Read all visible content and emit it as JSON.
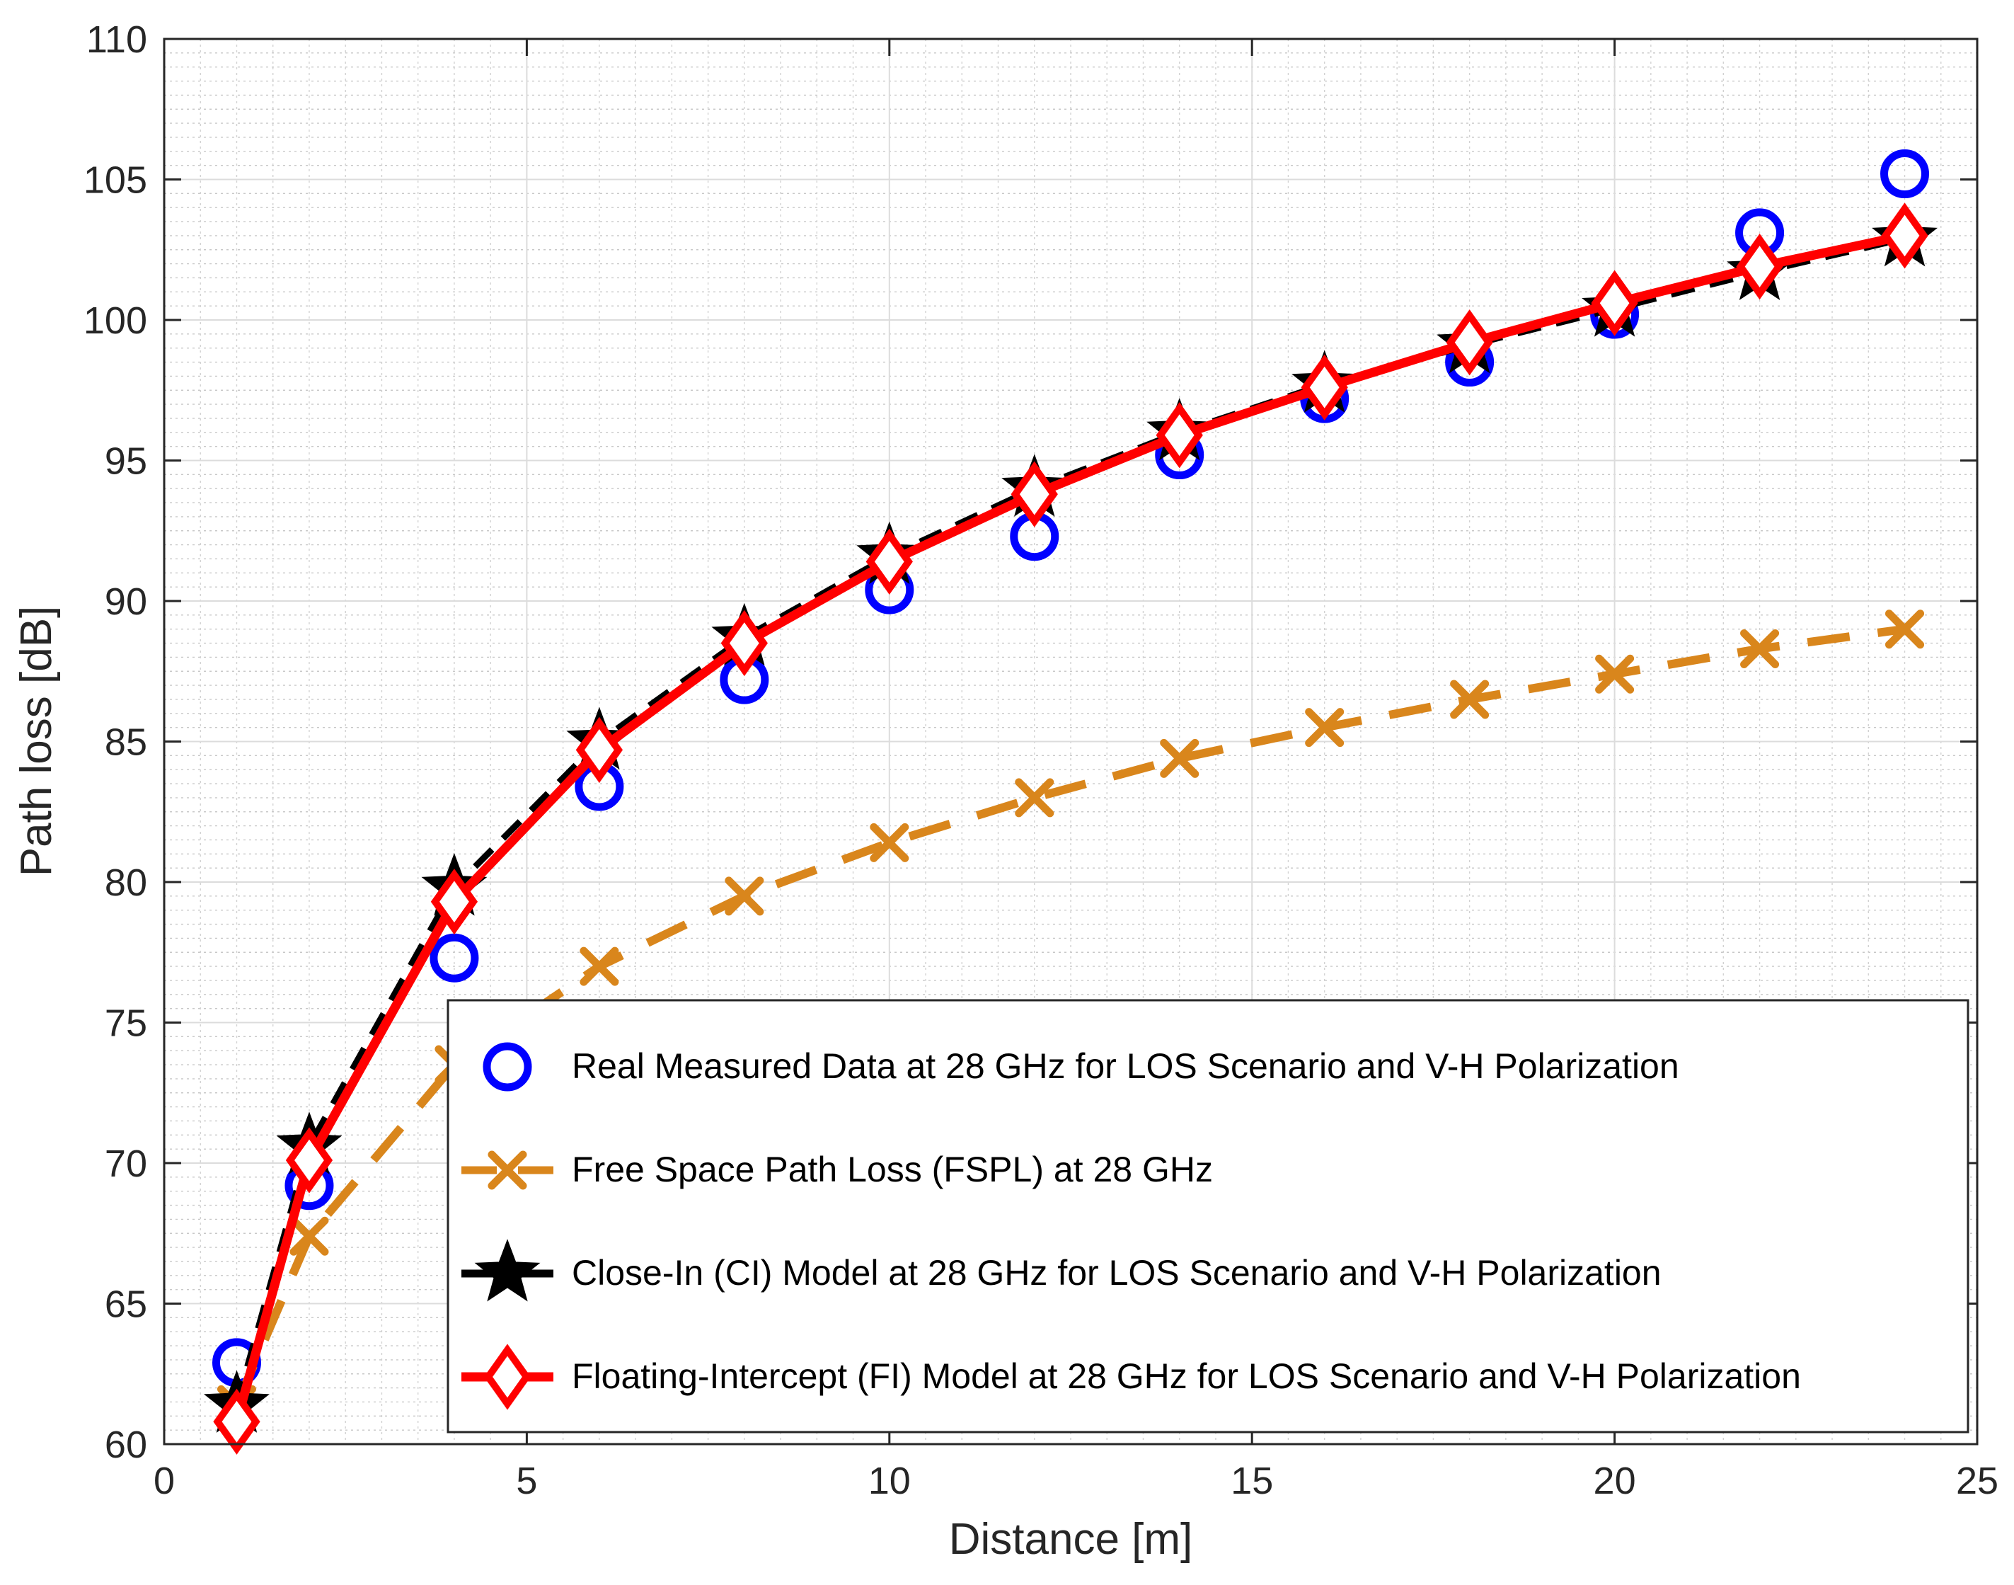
{
  "chart_data": {
    "type": "line",
    "title": "",
    "xlabel": "Distance [m]",
    "ylabel": "Path loss [dB]",
    "xlim": [
      0,
      25
    ],
    "ylim": [
      60,
      110
    ],
    "xticks": [
      0,
      5,
      10,
      15,
      20,
      25
    ],
    "yticks": [
      60,
      65,
      70,
      75,
      80,
      85,
      90,
      95,
      100,
      105,
      110
    ],
    "grid": true,
    "legend_position": "bottom-right",
    "series": [
      {
        "name": "Real Measured Data at 28 GHz for LOS Scenario and V-H Polarization",
        "style": "markers",
        "marker": "circle",
        "color": "#0000ff",
        "x": [
          1,
          2,
          4,
          6,
          8,
          10,
          12,
          14,
          16,
          18,
          20,
          22,
          24
        ],
        "y": [
          62.9,
          69.2,
          77.3,
          83.4,
          87.2,
          90.4,
          92.3,
          95.2,
          97.2,
          98.5,
          100.2,
          103.1,
          105.2
        ]
      },
      {
        "name": "Free Space Path Loss (FSPL) at 28 GHz",
        "style": "dashed-line",
        "marker": "x",
        "color": "#d9861c",
        "x": [
          1,
          2,
          4,
          6,
          8,
          10,
          12,
          14,
          16,
          18,
          20,
          22,
          24
        ],
        "y": [
          61.4,
          67.4,
          73.5,
          77.0,
          79.5,
          81.4,
          83.0,
          84.4,
          85.5,
          86.5,
          87.4,
          88.3,
          89.0
        ]
      },
      {
        "name": "Close-In (CI) Model at 28 GHz for LOS Scenario and V-H Polarization",
        "style": "dashed-line",
        "marker": "star",
        "color": "#000000",
        "x": [
          1,
          2,
          4,
          6,
          8,
          10,
          12,
          14,
          16,
          18,
          20,
          22,
          24
        ],
        "y": [
          61.4,
          70.6,
          79.8,
          85.0,
          88.7,
          91.6,
          94.0,
          96.0,
          97.7,
          99.1,
          100.4,
          101.7,
          102.9
        ]
      },
      {
        "name": "Floating-Intercept (FI) Model at 28 GHz for LOS Scenario and V-H Polarization",
        "style": "solid-line",
        "marker": "diamond",
        "color": "#ff0000",
        "x": [
          1,
          2,
          4,
          6,
          8,
          10,
          12,
          14,
          16,
          18,
          20,
          22,
          24
        ],
        "y": [
          60.8,
          70.1,
          79.3,
          84.7,
          88.5,
          91.4,
          93.8,
          95.9,
          97.6,
          99.2,
          100.6,
          101.9,
          103.0
        ]
      }
    ]
  }
}
